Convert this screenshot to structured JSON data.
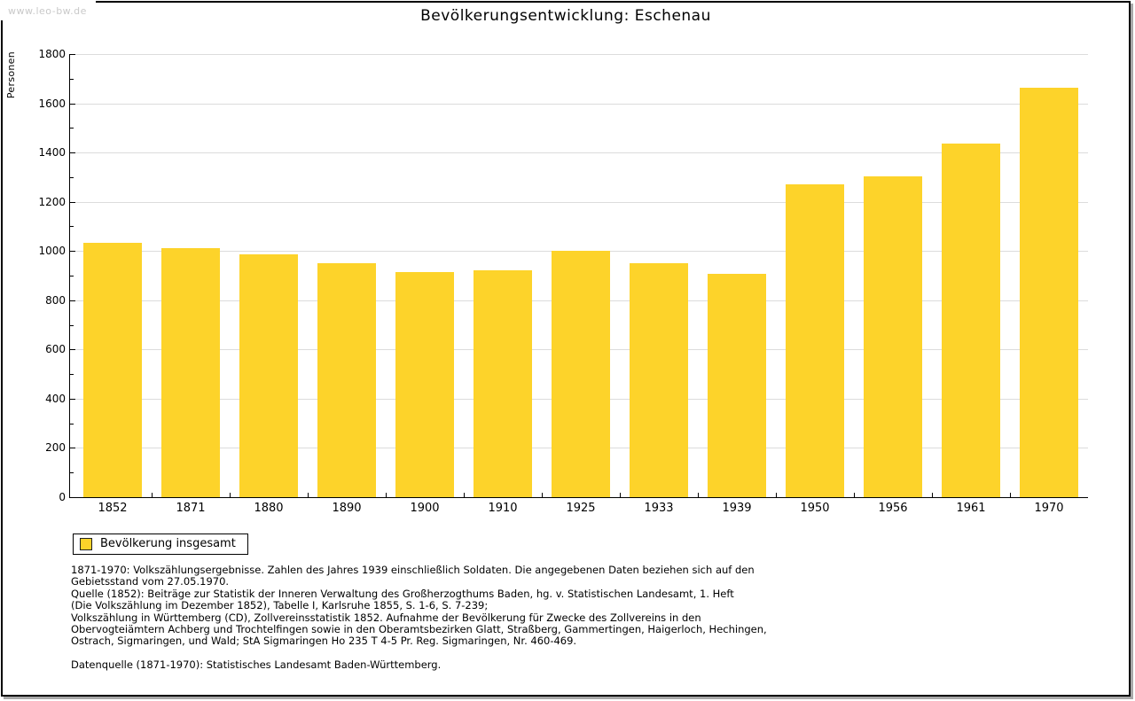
{
  "watermark": "www.leo-bw.de",
  "header": {
    "title": "Bevölkerungsentwicklung: Eschenau"
  },
  "chart_data": {
    "type": "bar",
    "title": "Bevölkerungsentwicklung: Eschenau",
    "xlabel": "",
    "ylabel": "Personen",
    "categories": [
      "1852",
      "1871",
      "1880",
      "1890",
      "1900",
      "1910",
      "1925",
      "1933",
      "1939",
      "1950",
      "1956",
      "1961",
      "1970"
    ],
    "series": [
      {
        "name": "Bevölkerung insgesamt",
        "values": [
          1034,
          1013,
          988,
          950,
          916,
          923,
          1000,
          950,
          907,
          1272,
          1305,
          1436,
          1665
        ]
      }
    ],
    "ylim": [
      0,
      1800
    ],
    "ytick_step": 200,
    "yminor_step": 100,
    "grid": true,
    "bar_color": "#fdd32a",
    "legend_position": "bottom-left"
  },
  "legend": {
    "label": "Bevölkerung insgesamt",
    "swatch_color": "#fdd32a"
  },
  "footer": {
    "notes": [
      "1871-1970: Volkszählungsergebnisse. Zahlen des Jahres 1939 einschließlich Soldaten. Die angegebenen Daten beziehen sich auf den",
      "Gebietsstand vom 27.05.1970.",
      "Quelle (1852): Beiträge zur Statistik der Inneren Verwaltung des Großherzogthums Baden, hg. v. Statistischen Landesamt, 1. Heft",
      "(Die Volkszählung im Dezember 1852), Tabelle I, Karlsruhe 1855, S. 1-6, S. 7-239;",
      "Volkszählung in Württemberg (CD), Zollvereinsstatistik 1852. Aufnahme der Bevölkerung für Zwecke des Zollvereins in den",
      "Obervogteiämtern Achberg und Trochtelfingen sowie in den Oberamtsbezirken Glatt, Straßberg, Gammertingen, Haigerloch, Hechingen,",
      "Ostrach, Sigmaringen, und Wald; StA Sigmaringen Ho 235 T 4-5 Pr. Reg. Sigmaringen, Nr. 460-469."
    ],
    "datasource": "Datenquelle (1871-1970): Statistisches Landesamt Baden-Württemberg."
  }
}
